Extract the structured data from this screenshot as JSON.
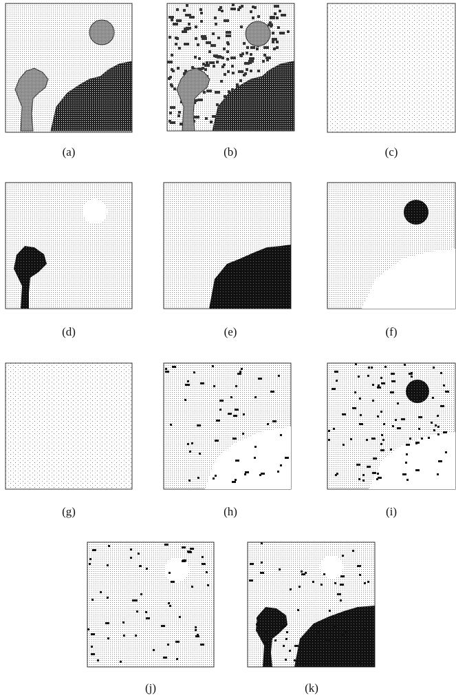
{
  "figure": {
    "panels": [
      {
        "caption": "(a)"
      },
      {
        "caption": "(b)"
      },
      {
        "caption": "(c)"
      },
      {
        "caption": "(d)"
      },
      {
        "caption": "(e)"
      },
      {
        "caption": "(f)"
      },
      {
        "caption": "(g)"
      },
      {
        "caption": "(h)"
      },
      {
        "caption": "(i)"
      },
      {
        "caption": "(j)"
      },
      {
        "caption": "(k)"
      }
    ]
  }
}
